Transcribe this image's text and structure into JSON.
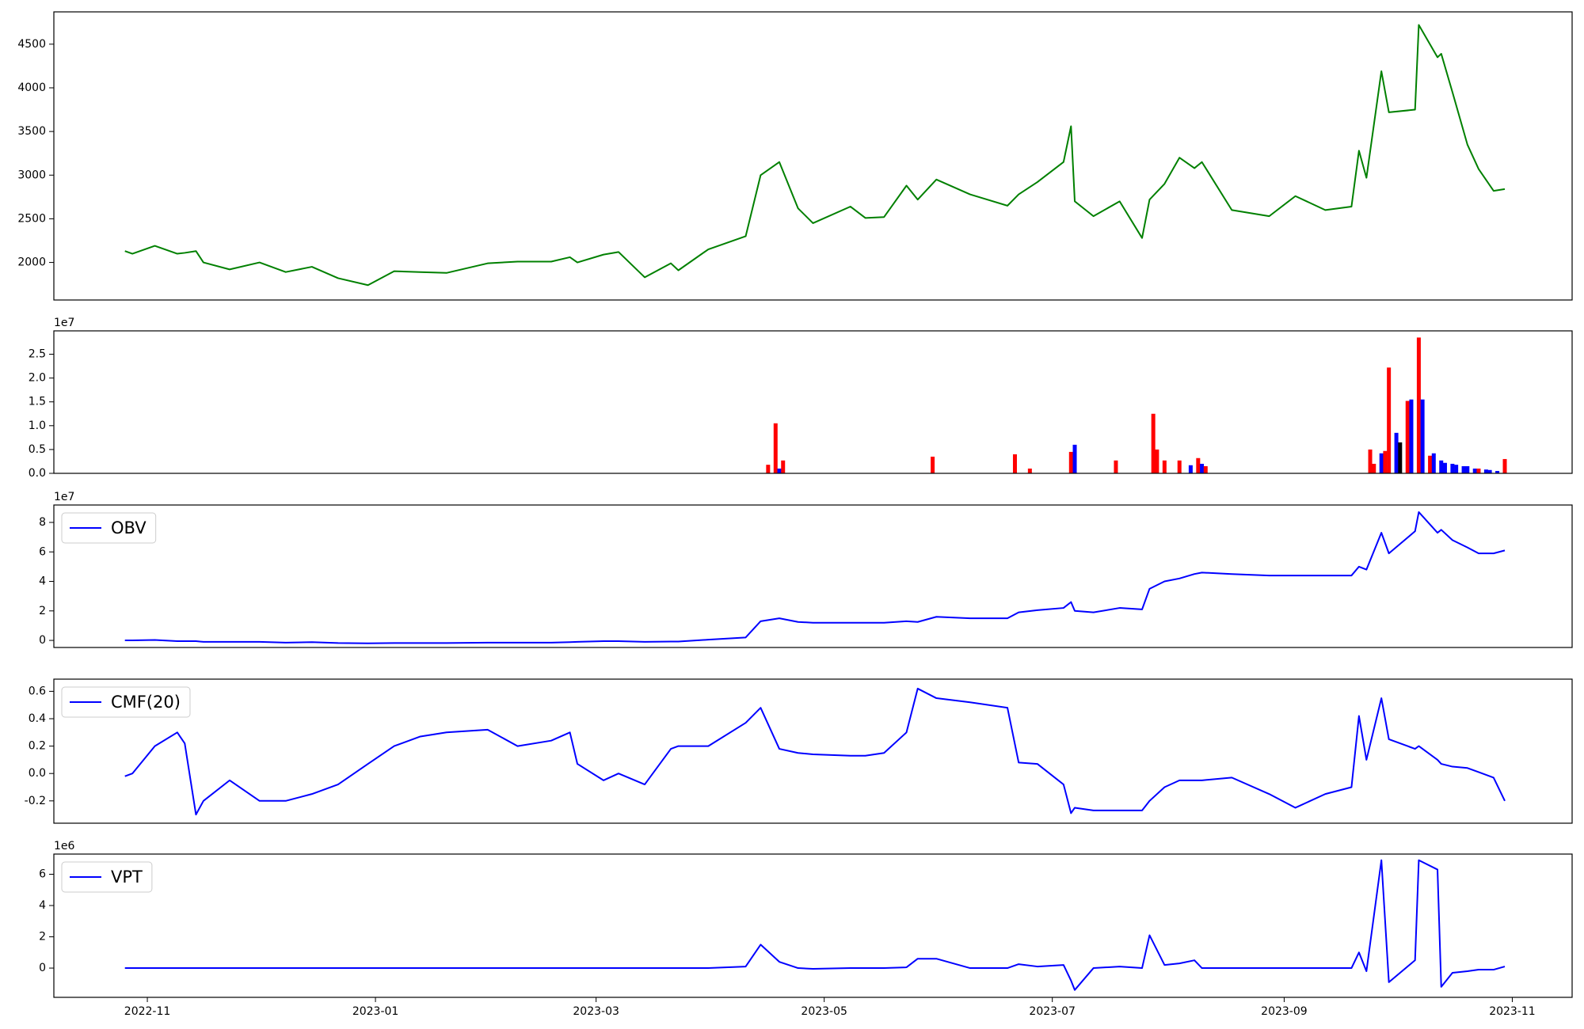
{
  "chart_data": [
    {
      "type": "line",
      "x": [
        "2022-10-26",
        "2022-10-28",
        "2022-11-03",
        "2022-11-09",
        "2022-11-11",
        "2022-11-14",
        "2022-11-16",
        "2022-11-23",
        "2022-12-01",
        "2022-12-08",
        "2022-12-15",
        "2022-12-22",
        "2022-12-30",
        "2023-01-06",
        "2023-01-13",
        "2023-01-20",
        "2023-01-31",
        "2023-02-08",
        "2023-02-17",
        "2023-02-22",
        "2023-02-24",
        "2023-03-03",
        "2023-03-07",
        "2023-03-14",
        "2023-03-21",
        "2023-03-23",
        "2023-03-31",
        "2023-04-10",
        "2023-04-14",
        "2023-04-19",
        "2023-04-24",
        "2023-04-28",
        "2023-05-08",
        "2023-05-12",
        "2023-05-17",
        "2023-05-23",
        "2023-05-26",
        "2023-05-31",
        "2023-06-09",
        "2023-06-19",
        "2023-06-22",
        "2023-06-27",
        "2023-07-04",
        "2023-07-06",
        "2023-07-07",
        "2023-07-12",
        "2023-07-19",
        "2023-07-25",
        "2023-07-27",
        "2023-07-31",
        "2023-08-04",
        "2023-08-08",
        "2023-08-10",
        "2023-08-18",
        "2023-08-28",
        "2023-09-04",
        "2023-09-12",
        "2023-09-19",
        "2023-09-21",
        "2023-09-23",
        "2023-09-27",
        "2023-09-29",
        "2023-10-06",
        "2023-10-07",
        "2023-10-12",
        "2023-10-13",
        "2023-10-16",
        "2023-10-20",
        "2023-10-23",
        "2023-10-27",
        "2023-10-30"
      ],
      "series": [
        {
          "color": "#008000",
          "values": [
            2130,
            2100,
            2190,
            2100,
            2110,
            2130,
            2000,
            1920,
            2000,
            1890,
            1950,
            1820,
            1740,
            1900,
            1890,
            1880,
            1990,
            2010,
            2010,
            2060,
            2000,
            2090,
            2120,
            1830,
            1990,
            1910,
            2150,
            2300,
            3000,
            3150,
            2620,
            2450,
            2640,
            2510,
            2520,
            2880,
            2720,
            2950,
            2780,
            2650,
            2780,
            2920,
            3150,
            3560,
            2700,
            2530,
            2700,
            2280,
            2720,
            2900,
            3200,
            3080,
            3150,
            2600,
            2530,
            2760,
            2600,
            2640,
            3280,
            2970,
            4190,
            3720,
            3750,
            4720,
            4350,
            4390,
            3950,
            3350,
            3070,
            2820,
            2840
          ]
        }
      ],
      "xlim": [
        "2022-10-07",
        "2023-11-17"
      ],
      "ylim": [
        1570,
        4870
      ],
      "yticks": [
        2000,
        2500,
        3000,
        3500,
        4000,
        4500
      ]
    },
    {
      "type": "bar",
      "x": [
        "2023-04-16",
        "2023-04-18",
        "2023-04-19",
        "2023-04-20",
        "2023-05-30",
        "2023-06-21",
        "2023-06-25",
        "2023-07-06",
        "2023-07-07",
        "2023-07-18",
        "2023-07-28",
        "2023-07-29",
        "2023-07-31",
        "2023-08-04",
        "2023-08-07",
        "2023-08-09",
        "2023-08-10",
        "2023-08-11",
        "2023-09-24",
        "2023-09-25",
        "2023-09-27",
        "2023-09-28",
        "2023-09-29",
        "2023-10-01",
        "2023-10-02",
        "2023-10-04",
        "2023-10-05",
        "2023-10-07",
        "2023-10-08",
        "2023-10-10",
        "2023-10-11",
        "2023-10-13",
        "2023-10-14",
        "2023-10-16",
        "2023-10-17",
        "2023-10-19",
        "2023-10-20",
        "2023-10-22",
        "2023-10-23",
        "2023-10-25",
        "2023-10-26",
        "2023-10-28",
        "2023-10-30"
      ],
      "values": [
        0.18,
        1.05,
        0.1,
        0.27,
        0.35,
        0.4,
        0.1,
        0.45,
        0.6,
        0.27,
        1.25,
        0.5,
        0.27,
        0.27,
        0.17,
        0.32,
        0.2,
        0.15,
        0.5,
        0.2,
        0.42,
        0.47,
        2.22,
        0.85,
        0.65,
        1.52,
        1.55,
        2.85,
        1.55,
        0.37,
        0.42,
        0.27,
        0.22,
        0.2,
        0.18,
        0.15,
        0.15,
        0.1,
        0.1,
        0.08,
        0.07,
        0.05,
        0.3
      ],
      "colors": [
        "#ff0000",
        "#ff0000",
        "#0000ff",
        "#ff0000",
        "#ff0000",
        "#ff0000",
        "#ff0000",
        "#ff0000",
        "#0000ff",
        "#ff0000",
        "#ff0000",
        "#ff0000",
        "#ff0000",
        "#ff0000",
        "#0000ff",
        "#ff0000",
        "#0000ff",
        "#ff0000",
        "#ff0000",
        "#ff0000",
        "#0000ff",
        "#ff0000",
        "#ff0000",
        "#0000ff",
        "#000000",
        "#ff0000",
        "#0000ff",
        "#ff0000",
        "#0000ff",
        "#ff0000",
        "#0000ff",
        "#0000ff",
        "#0000ff",
        "#0000ff",
        "#0000ff",
        "#0000ff",
        "#0000ff",
        "#0000ff",
        "#ff0000",
        "#0000ff",
        "#0000ff",
        "#0000ff",
        "#ff0000"
      ],
      "xlim": [
        "2022-10-07",
        "2023-11-17"
      ],
      "ylim": [
        0,
        2.99
      ],
      "yticks": [
        {
          "value": 0,
          "label": "0.0"
        },
        0.5,
        {
          "value": 1,
          "label": "1.0"
        },
        1.5,
        {
          "value": 2,
          "label": "2.0"
        },
        2.5
      ],
      "y_offset_label": "1e7"
    },
    {
      "type": "line",
      "x": [
        "2022-10-26",
        "2022-10-28",
        "2022-11-03",
        "2022-11-09",
        "2022-11-11",
        "2022-11-14",
        "2022-11-16",
        "2022-11-23",
        "2022-12-01",
        "2022-12-08",
        "2022-12-15",
        "2022-12-22",
        "2022-12-30",
        "2023-01-06",
        "2023-01-13",
        "2023-01-20",
        "2023-01-31",
        "2023-02-08",
        "2023-02-17",
        "2023-02-22",
        "2023-02-24",
        "2023-03-03",
        "2023-03-07",
        "2023-03-14",
        "2023-03-21",
        "2023-03-23",
        "2023-03-31",
        "2023-04-10",
        "2023-04-14",
        "2023-04-19",
        "2023-04-24",
        "2023-04-28",
        "2023-05-08",
        "2023-05-12",
        "2023-05-17",
        "2023-05-23",
        "2023-05-26",
        "2023-05-31",
        "2023-06-09",
        "2023-06-19",
        "2023-06-22",
        "2023-06-27",
        "2023-07-04",
        "2023-07-06",
        "2023-07-07",
        "2023-07-12",
        "2023-07-19",
        "2023-07-25",
        "2023-07-27",
        "2023-07-31",
        "2023-08-04",
        "2023-08-08",
        "2023-08-10",
        "2023-08-18",
        "2023-08-28",
        "2023-09-04",
        "2023-09-12",
        "2023-09-19",
        "2023-09-21",
        "2023-09-23",
        "2023-09-27",
        "2023-09-29",
        "2023-10-06",
        "2023-10-07",
        "2023-10-12",
        "2023-10-13",
        "2023-10-16",
        "2023-10-20",
        "2023-10-23",
        "2023-10-27",
        "2023-10-30"
      ],
      "series": [
        {
          "name": "OBV",
          "color": "#0000ff",
          "values": [
            0,
            0,
            0.03,
            -0.05,
            -0.05,
            -0.05,
            -0.1,
            -0.1,
            -0.1,
            -0.15,
            -0.12,
            -0.18,
            -0.2,
            -0.18,
            -0.18,
            -0.18,
            -0.15,
            -0.15,
            -0.15,
            -0.12,
            -0.1,
            -0.05,
            -0.05,
            -0.1,
            -0.08,
            -0.08,
            0.05,
            0.2,
            1.3,
            1.5,
            1.25,
            1.2,
            1.2,
            1.2,
            1.2,
            1.3,
            1.25,
            1.6,
            1.5,
            1.5,
            1.9,
            2.05,
            2.2,
            2.6,
            2.0,
            1.9,
            2.2,
            2.1,
            3.5,
            4.0,
            4.2,
            4.5,
            4.6,
            4.5,
            4.4,
            4.4,
            4.4,
            4.4,
            5.0,
            4.8,
            7.3,
            5.9,
            7.4,
            8.7,
            7.3,
            7.5,
            6.8,
            6.3,
            5.9,
            5.9,
            6.1
          ]
        }
      ],
      "xlim": [
        "2022-10-07",
        "2023-11-17"
      ],
      "ylim": [
        -0.48,
        9.18
      ],
      "yticks": [
        0,
        2,
        4,
        6,
        8
      ],
      "y_offset_label": "1e7",
      "legend": "upper left"
    },
    {
      "type": "line",
      "x": [
        "2022-10-26",
        "2022-10-28",
        "2022-11-03",
        "2022-11-09",
        "2022-11-11",
        "2022-11-14",
        "2022-11-16",
        "2022-11-23",
        "2022-12-01",
        "2022-12-08",
        "2022-12-15",
        "2022-12-22",
        "2022-12-30",
        "2023-01-06",
        "2023-01-13",
        "2023-01-20",
        "2023-01-31",
        "2023-02-08",
        "2023-02-17",
        "2023-02-22",
        "2023-02-24",
        "2023-03-03",
        "2023-03-07",
        "2023-03-14",
        "2023-03-21",
        "2023-03-23",
        "2023-03-31",
        "2023-04-10",
        "2023-04-14",
        "2023-04-19",
        "2023-04-24",
        "2023-04-28",
        "2023-05-08",
        "2023-05-12",
        "2023-05-17",
        "2023-05-23",
        "2023-05-26",
        "2023-05-31",
        "2023-06-09",
        "2023-06-19",
        "2023-06-22",
        "2023-06-27",
        "2023-07-04",
        "2023-07-06",
        "2023-07-07",
        "2023-07-12",
        "2023-07-19",
        "2023-07-25",
        "2023-07-27",
        "2023-07-31",
        "2023-08-04",
        "2023-08-08",
        "2023-08-10",
        "2023-08-18",
        "2023-08-28",
        "2023-09-04",
        "2023-09-12",
        "2023-09-19",
        "2023-09-21",
        "2023-09-23",
        "2023-09-27",
        "2023-09-29",
        "2023-10-06",
        "2023-10-07",
        "2023-10-12",
        "2023-10-13",
        "2023-10-16",
        "2023-10-20",
        "2023-10-23",
        "2023-10-27",
        "2023-10-30"
      ],
      "series": [
        {
          "name": "CMF(20)",
          "color": "#0000ff",
          "values": [
            -0.02,
            0.0,
            0.2,
            0.3,
            0.22,
            -0.3,
            -0.2,
            -0.05,
            -0.2,
            -0.2,
            -0.15,
            -0.08,
            0.07,
            0.2,
            0.27,
            0.3,
            0.32,
            0.2,
            0.24,
            0.3,
            0.07,
            -0.05,
            0.0,
            -0.08,
            0.18,
            0.2,
            0.2,
            0.37,
            0.48,
            0.18,
            0.15,
            0.14,
            0.13,
            0.13,
            0.15,
            0.3,
            0.62,
            0.55,
            0.52,
            0.48,
            0.08,
            0.07,
            -0.08,
            -0.29,
            -0.25,
            -0.27,
            -0.27,
            -0.27,
            -0.2,
            -0.1,
            -0.05,
            -0.05,
            -0.05,
            -0.03,
            -0.15,
            -0.25,
            -0.15,
            -0.1,
            0.42,
            0.1,
            0.55,
            0.25,
            0.18,
            0.2,
            0.1,
            0.07,
            0.05,
            0.04,
            0.01,
            -0.03,
            -0.2
          ]
        }
      ],
      "xlim": [
        "2022-10-07",
        "2023-11-17"
      ],
      "ylim": [
        -0.363,
        0.689
      ],
      "yticks": [
        -0.2,
        {
          "value": 0,
          "label": "0.0"
        },
        0.2,
        0.4,
        0.6
      ],
      "legend": "upper left"
    },
    {
      "type": "line",
      "x": [
        "2022-10-26",
        "2022-10-28",
        "2022-11-03",
        "2022-11-09",
        "2022-11-11",
        "2022-11-14",
        "2022-11-16",
        "2022-11-23",
        "2022-12-01",
        "2022-12-08",
        "2022-12-15",
        "2022-12-22",
        "2022-12-30",
        "2023-01-06",
        "2023-01-13",
        "2023-01-20",
        "2023-01-31",
        "2023-02-08",
        "2023-02-17",
        "2023-02-22",
        "2023-02-24",
        "2023-03-03",
        "2023-03-07",
        "2023-03-14",
        "2023-03-21",
        "2023-03-23",
        "2023-03-31",
        "2023-04-10",
        "2023-04-14",
        "2023-04-19",
        "2023-04-24",
        "2023-04-28",
        "2023-05-08",
        "2023-05-12",
        "2023-05-17",
        "2023-05-23",
        "2023-05-26",
        "2023-05-31",
        "2023-06-09",
        "2023-06-19",
        "2023-06-22",
        "2023-06-27",
        "2023-07-04",
        "2023-07-06",
        "2023-07-07",
        "2023-07-12",
        "2023-07-19",
        "2023-07-25",
        "2023-07-27",
        "2023-07-31",
        "2023-08-04",
        "2023-08-08",
        "2023-08-10",
        "2023-08-18",
        "2023-08-28",
        "2023-09-04",
        "2023-09-12",
        "2023-09-19",
        "2023-09-21",
        "2023-09-23",
        "2023-09-27",
        "2023-09-29",
        "2023-10-06",
        "2023-10-07",
        "2023-10-12",
        "2023-10-13",
        "2023-10-16",
        "2023-10-20",
        "2023-10-23",
        "2023-10-27",
        "2023-10-30"
      ],
      "series": [
        {
          "name": "VPT",
          "color": "#0000ff",
          "values": [
            0,
            0,
            0,
            0,
            0,
            0,
            0,
            0,
            0,
            0,
            0,
            0,
            0,
            0,
            0,
            0,
            0,
            0,
            0,
            0,
            0,
            0,
            0,
            0,
            0,
            0,
            0,
            0.1,
            1.5,
            0.4,
            0,
            -0.05,
            0,
            0,
            0,
            0.05,
            0.6,
            0.6,
            0,
            0,
            0.25,
            0.1,
            0.2,
            -0.8,
            -1.4,
            0,
            0.1,
            0,
            2.1,
            0.2,
            0.3,
            0.5,
            0,
            0,
            0,
            0,
            0,
            0,
            1.0,
            -0.2,
            6.9,
            -0.9,
            0.5,
            6.9,
            6.3,
            -1.2,
            -0.3,
            -0.2,
            -0.1,
            -0.1,
            0.1
          ]
        }
      ],
      "xlim": [
        "2022-10-07",
        "2023-11-17"
      ],
      "xticks": [
        {
          "value": "2022-11-01",
          "label": "2022-11"
        },
        {
          "value": "2023-01-01",
          "label": "2023-01"
        },
        {
          "value": "2023-03-01",
          "label": "2023-03"
        },
        {
          "value": "2023-05-01",
          "label": "2023-05"
        },
        {
          "value": "2023-07-01",
          "label": "2023-07"
        },
        {
          "value": "2023-09-01",
          "label": "2023-09"
        },
        {
          "value": "2023-11-01",
          "label": "2023-11"
        }
      ],
      "ylim": [
        -1.87,
        7.29
      ],
      "yticks": [
        0,
        2,
        4,
        6
      ],
      "y_offset_label": "1e6",
      "legend": "upper left"
    }
  ]
}
